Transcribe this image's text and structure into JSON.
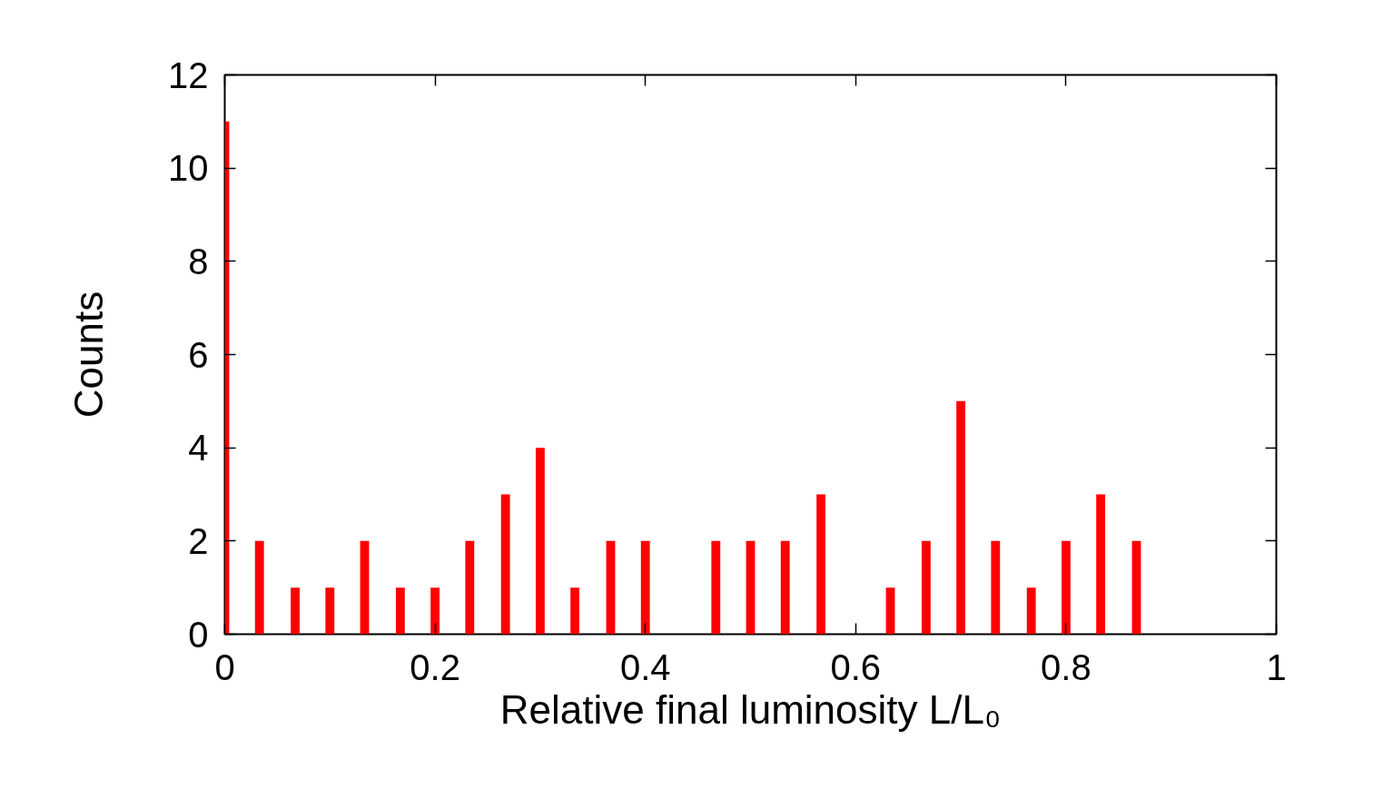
{
  "chart_data": {
    "type": "bar",
    "xlabel": "Relative final luminosity L/L₀",
    "ylabel": "Counts",
    "x": [
      0,
      0.033,
      0.067,
      0.1,
      0.133,
      0.167,
      0.2,
      0.233,
      0.267,
      0.3,
      0.333,
      0.367,
      0.4,
      0.467,
      0.5,
      0.533,
      0.567,
      0.633,
      0.667,
      0.7,
      0.733,
      0.767,
      0.8,
      0.833,
      0.867
    ],
    "values": [
      11,
      2,
      1,
      1,
      2,
      1,
      1,
      2,
      3,
      4,
      1,
      2,
      2,
      2,
      2,
      2,
      3,
      1,
      2,
      5,
      2,
      1,
      2,
      3,
      2
    ],
    "color": "#ff0000",
    "xlim": [
      0,
      1
    ],
    "xticks": [
      0,
      0.2,
      0.4,
      0.6,
      0.8,
      1
    ],
    "ylim": [
      0,
      12
    ],
    "yticks": [
      0,
      2,
      4,
      6,
      8,
      10,
      12
    ],
    "grid": false
  }
}
